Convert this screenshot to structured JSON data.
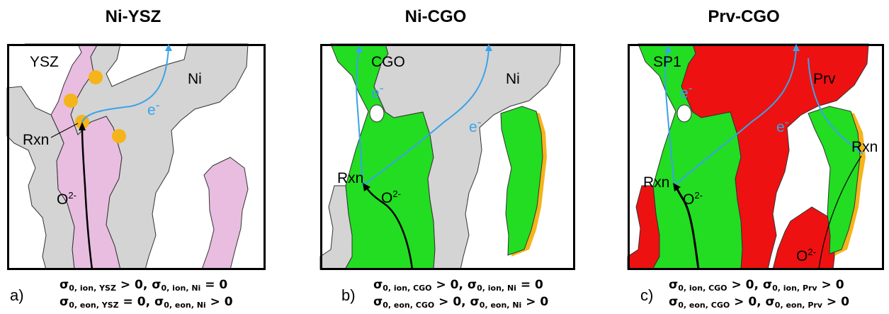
{
  "panels": [
    {
      "title": "Ni-YSZ",
      "letter": "a)",
      "labels": [
        "YSZ",
        "Ni",
        "e-",
        "Rxn",
        "O2-"
      ],
      "eq1": "σ0, ion, YSZ > 0, σ0, ion, Ni = 0",
      "eq2": "σ0, eon, YSZ = 0, σ0, eon, Ni > 0",
      "colors": {
        "electrolyte": "#e8bde0",
        "metal": "#d4d4d4",
        "tpb": "#f4b41a"
      }
    },
    {
      "title": "Ni-CGO",
      "letter": "b)",
      "labels": [
        "CGO",
        "Ni",
        "e-",
        "e-",
        "Rxn",
        "O2-"
      ],
      "eq1": "σ0, ion, CGO > 0, σ0, ion, Ni = 0",
      "eq2": "σ0, eon, CGO > 0, σ0, eon, Ni > 0",
      "colors": {
        "electrolyte": "#22dd22",
        "metal": "#d4d4d4",
        "tpb": "#f4b41a"
      }
    },
    {
      "title": "Prv-CGO",
      "letter": "c)",
      "labels": [
        "SP1",
        "Prv",
        "e-",
        "e-",
        "Rxn",
        "Rxn",
        "O2-",
        "O2-"
      ],
      "eq1": "σ0, ion, CGO > 0, σ0, ion, Prv > 0",
      "eq2": "σ0, eon, CGO > 0, σ0, eon, Prv > 0",
      "colors": {
        "electrolyte": "#22dd22",
        "metal": "#ee1111",
        "tpb": "#f4b41a"
      }
    }
  ],
  "text": {
    "e": "e",
    "minus": "-",
    "O": "O",
    "two_minus": "2-",
    "rxn": "Rxn",
    "sigma": "σ",
    "zero": "0",
    "a": {
      "ion_ysz": ", ion, YSZ",
      "ion_ni": ", ion, Ni",
      "eon_ysz": ", eon, YSZ",
      "eon_ni": ", eon, Ni"
    },
    "b": {
      "ion_cgo": ", ion, CGO",
      "ion_ni": ", ion, Ni",
      "eon_cgo": ", eon, CGO",
      "eon_ni": ", eon, Ni"
    },
    "c": {
      "ion_cgo": ", ion, CGO",
      "ion_prv": ", ion, Prv",
      "eon_cgo": ", eon, CGO",
      "eon_prv": ", eon, Prv"
    },
    "gt0": " > 0",
    "eq0": " = 0",
    "comma": ", "
  }
}
